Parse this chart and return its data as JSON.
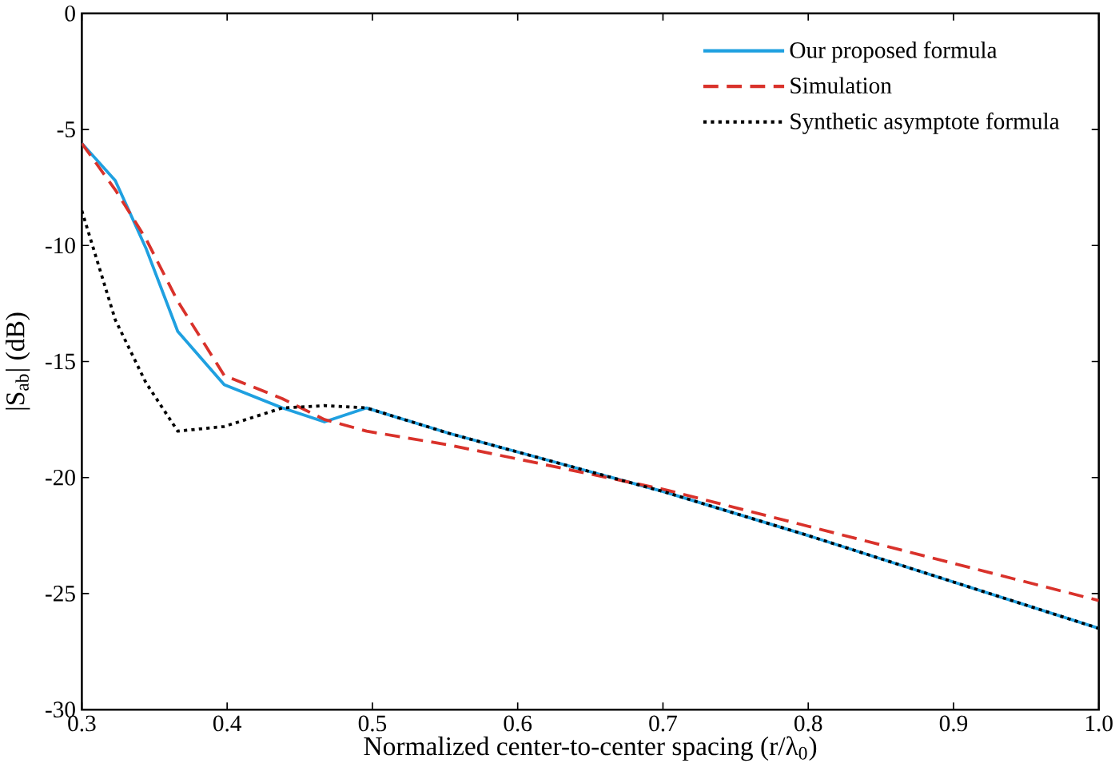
{
  "chart_data": {
    "type": "line",
    "xlabel": "Normalized center-to-center spacing (r/λ$_{0}$)",
    "ylabel": "|S$_{ab}$| (dB)",
    "x": [
      0.3,
      0.323,
      0.344,
      0.366,
      0.398,
      0.438,
      0.467,
      0.496,
      0.553,
      0.6,
      0.7,
      0.8,
      0.9,
      1.0
    ],
    "xlim": [
      0.3,
      1.0
    ],
    "xticks": [
      0.3,
      0.4,
      0.5,
      0.6,
      0.7,
      0.8,
      0.9,
      {
        "value": 1.0,
        "label": "1.0"
      }
    ],
    "ylim": [
      -30,
      0
    ],
    "yticks": [
      -30,
      -25,
      -20,
      -15,
      -10,
      -5,
      0
    ],
    "grid": false,
    "legend": "top right",
    "marker": "none",
    "series": [
      {
        "name": "Our proposed formula",
        "color": "#1fa0e0",
        "line_style": "solid",
        "values": [
          -5.6,
          -7.2,
          -10.1,
          -13.7,
          -16.0,
          -17.0,
          -17.6,
          -17.0,
          -18.1,
          -18.9,
          -20.6,
          -22.5,
          -24.5,
          -26.5
        ]
      },
      {
        "name": "Simulation",
        "color": "#d9322b",
        "line_style": "dashed",
        "values": [
          -5.6,
          -7.6,
          -9.7,
          -12.4,
          -15.6,
          -16.6,
          -17.5,
          -18.0,
          -18.6,
          -19.2,
          -20.5,
          -22.1,
          -23.7,
          -25.3
        ]
      },
      {
        "name": "Synthetic asymptote formula",
        "color": "#000000",
        "line_style": "dotted",
        "values": [
          -8.5,
          -13.2,
          -15.9,
          -18.0,
          -17.8,
          -17.0,
          -16.9,
          -17.0,
          -18.1,
          -18.9,
          -20.6,
          -22.5,
          -24.5,
          -26.5
        ]
      }
    ]
  }
}
